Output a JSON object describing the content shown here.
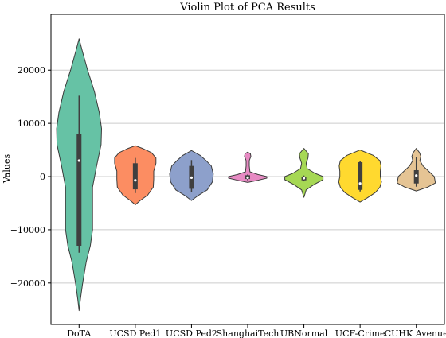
{
  "chart_data": {
    "type": "violin",
    "title": "Violin Plot of PCA Results",
    "xlabel": "",
    "ylabel": "Values",
    "ylim": [
      -27800,
      30500
    ],
    "yticks": [
      20000,
      10000,
      0,
      -10000,
      -20000
    ],
    "ytick_labels": [
      "20000",
      "10000",
      "0",
      "−10000",
      "−20000"
    ],
    "grid": "horizontal",
    "categories": [
      "DoTA",
      "UCSD Ped1",
      "UCSD Ped2",
      "ShanghaiTech",
      "UBNormal",
      "UCF-Crime",
      "CUHK Avenue"
    ],
    "colors": [
      "#66c2a5",
      "#fc8d62",
      "#8da0cb",
      "#e78ac3",
      "#a6d854",
      "#ffd92f",
      "#e5c494"
    ],
    "violins": [
      {
        "min": -25200,
        "max": 25900,
        "q1": -13000,
        "median": 3000,
        "q3": 8000,
        "wlo": -14300,
        "whi": 15200,
        "profile": [
          [
            -25200,
            0
          ],
          [
            -23000,
            0.06
          ],
          [
            -20000,
            0.16
          ],
          [
            -16000,
            0.32
          ],
          [
            -13000,
            0.5
          ],
          [
            -10000,
            0.6
          ],
          [
            -6000,
            0.6
          ],
          [
            -2000,
            0.6
          ],
          [
            2000,
            0.78
          ],
          [
            6000,
            0.98
          ],
          [
            9000,
            1.0
          ],
          [
            12000,
            0.9
          ],
          [
            16000,
            0.68
          ],
          [
            20000,
            0.38
          ],
          [
            23500,
            0.15
          ],
          [
            25900,
            0
          ]
        ]
      },
      {
        "min": -5300,
        "max": 5800,
        "q1": -2400,
        "median": -700,
        "q3": 2500,
        "wlo": -3100,
        "whi": 3500,
        "profile": [
          [
            -5300,
            0
          ],
          [
            -4500,
            0.22
          ],
          [
            -3500,
            0.55
          ],
          [
            -2000,
            0.8
          ],
          [
            -500,
            0.82
          ],
          [
            1000,
            0.82
          ],
          [
            2500,
            0.92
          ],
          [
            3500,
            0.92
          ],
          [
            4500,
            0.72
          ],
          [
            5300,
            0.32
          ],
          [
            5800,
            0
          ]
        ]
      },
      {
        "min": -4500,
        "max": 4900,
        "q1": -2300,
        "median": -200,
        "q3": 2000,
        "wlo": -2900,
        "whi": 3100,
        "profile": [
          [
            -4500,
            0
          ],
          [
            -3500,
            0.32
          ],
          [
            -2500,
            0.7
          ],
          [
            -1000,
            0.93
          ],
          [
            500,
            0.97
          ],
          [
            2000,
            0.88
          ],
          [
            3000,
            0.65
          ],
          [
            4000,
            0.38
          ],
          [
            4900,
            0
          ]
        ]
      },
      {
        "min": -1100,
        "max": 4600,
        "q1": -450,
        "median": -200,
        "q3": 250,
        "wlo": -700,
        "whi": 400,
        "profile": [
          [
            -1100,
            0
          ],
          [
            -700,
            0.45
          ],
          [
            -300,
            0.85
          ],
          [
            0,
            0.85
          ],
          [
            400,
            0.45
          ],
          [
            900,
            0.1
          ],
          [
            2000,
            0.07
          ],
          [
            3000,
            0.07
          ],
          [
            3800,
            0.14
          ],
          [
            4300,
            0.12
          ],
          [
            4600,
            0
          ]
        ]
      },
      {
        "min": -3900,
        "max": 5300,
        "q1": -700,
        "median": -300,
        "q3": -100,
        "wlo": -900,
        "whi": 200,
        "profile": [
          [
            -3900,
            0
          ],
          [
            -2500,
            0.1
          ],
          [
            -1500,
            0.45
          ],
          [
            -600,
            0.85
          ],
          [
            0,
            0.85
          ],
          [
            600,
            0.5
          ],
          [
            1500,
            0.15
          ],
          [
            2500,
            0.1
          ],
          [
            3500,
            0.18
          ],
          [
            4300,
            0.2
          ],
          [
            5300,
            0
          ]
        ]
      },
      {
        "min": -4800,
        "max": 5000,
        "q1": -2500,
        "median": -1300,
        "q3": 2700,
        "wlo": -2800,
        "whi": 2900,
        "profile": [
          [
            -4800,
            0
          ],
          [
            -4000,
            0.32
          ],
          [
            -3000,
            0.68
          ],
          [
            -2000,
            0.88
          ],
          [
            -1000,
            0.95
          ],
          [
            0,
            0.9
          ],
          [
            1000,
            0.9
          ],
          [
            2000,
            0.93
          ],
          [
            3000,
            0.88
          ],
          [
            4000,
            0.58
          ],
          [
            5000,
            0
          ]
        ]
      },
      {
        "min": -2700,
        "max": 5300,
        "q1": -1300,
        "median": 200,
        "q3": 1200,
        "wlo": -1900,
        "whi": 3600,
        "profile": [
          [
            -2700,
            0
          ],
          [
            -2000,
            0.5
          ],
          [
            -1200,
            0.85
          ],
          [
            0,
            0.8
          ],
          [
            1000,
            0.55
          ],
          [
            2000,
            0.3
          ],
          [
            3000,
            0.16
          ],
          [
            3800,
            0.2
          ],
          [
            4500,
            0.14
          ],
          [
            5300,
            0
          ]
        ]
      }
    ]
  }
}
